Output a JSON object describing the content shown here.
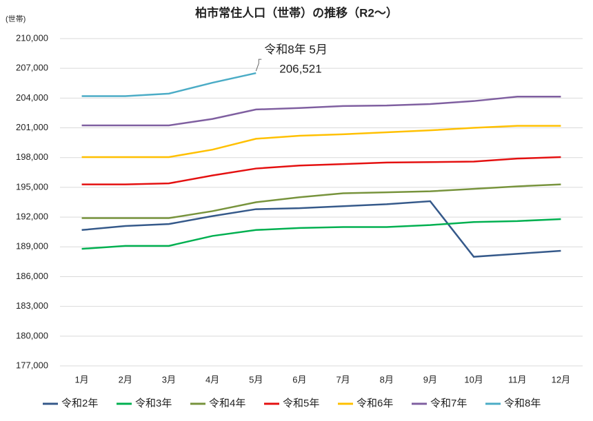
{
  "chart_data": {
    "type": "line",
    "title": "柏市常住人口（世帯）の推移（R2～）",
    "y_axis_label": "(世帯)",
    "categories": [
      "1月",
      "2月",
      "3月",
      "4月",
      "5月",
      "6月",
      "7月",
      "8月",
      "9月",
      "10月",
      "11月",
      "12月"
    ],
    "ylim": [
      177000,
      210000
    ],
    "yticks": [
      {
        "value": 177000,
        "label": "177,000"
      },
      {
        "value": 180000,
        "label": "180,000"
      },
      {
        "value": 183000,
        "label": "183,000"
      },
      {
        "value": 186000,
        "label": "186,000"
      },
      {
        "value": 189000,
        "label": "189,000"
      },
      {
        "value": 192000,
        "label": "192,000"
      },
      {
        "value": 195000,
        "label": "195,000"
      },
      {
        "value": 198000,
        "label": "198,000"
      },
      {
        "value": 201000,
        "label": "201,000"
      },
      {
        "value": 204000,
        "label": "204,000"
      },
      {
        "value": 207000,
        "label": "207,000"
      },
      {
        "value": 210000,
        "label": "210,000"
      }
    ],
    "grid": true,
    "legend": "bottom",
    "annotation": "令和8年 5月",
    "series": [
      {
        "name": "令和2年",
        "color": "#35598a",
        "values": [
          190700,
          191100,
          191300,
          192100,
          192800,
          192900,
          193100,
          193300,
          193600,
          188000,
          188300,
          188600
        ]
      },
      {
        "name": "令和3年",
        "color": "#00b050",
        "values": [
          188800,
          189100,
          189100,
          190100,
          190700,
          190900,
          191000,
          191000,
          191200,
          191500,
          191600,
          191800
        ]
      },
      {
        "name": "令和4年",
        "color": "#77933c",
        "values": [
          191900,
          191900,
          191900,
          192600,
          193500,
          194000,
          194400,
          194500,
          194600,
          194850,
          195100,
          195300
        ]
      },
      {
        "name": "令和5年",
        "color": "#e41010",
        "values": [
          195300,
          195300,
          195400,
          196200,
          196900,
          197200,
          197350,
          197500,
          197550,
          197600,
          197900,
          198050
        ]
      },
      {
        "name": "令和6年",
        "color": "#ffc000",
        "values": [
          198050,
          198050,
          198050,
          198800,
          199900,
          200200,
          200350,
          200550,
          200750,
          201000,
          201200,
          201200
        ]
      },
      {
        "name": "令和7年",
        "color": "#7f5fa0",
        "values": [
          201250,
          201250,
          201250,
          201900,
          202850,
          203000,
          203200,
          203250,
          203400,
          203700,
          204150,
          204150
        ]
      },
      {
        "name": "令和8年",
        "color": "#4bacc6",
        "values": [
          204200,
          204200,
          204450,
          205550,
          206521,
          null,
          null,
          null,
          null,
          null,
          null,
          null
        ],
        "value_labels": [
          null,
          null,
          null,
          null,
          "206,521",
          null,
          null,
          null,
          null,
          null,
          null,
          null
        ]
      }
    ]
  }
}
